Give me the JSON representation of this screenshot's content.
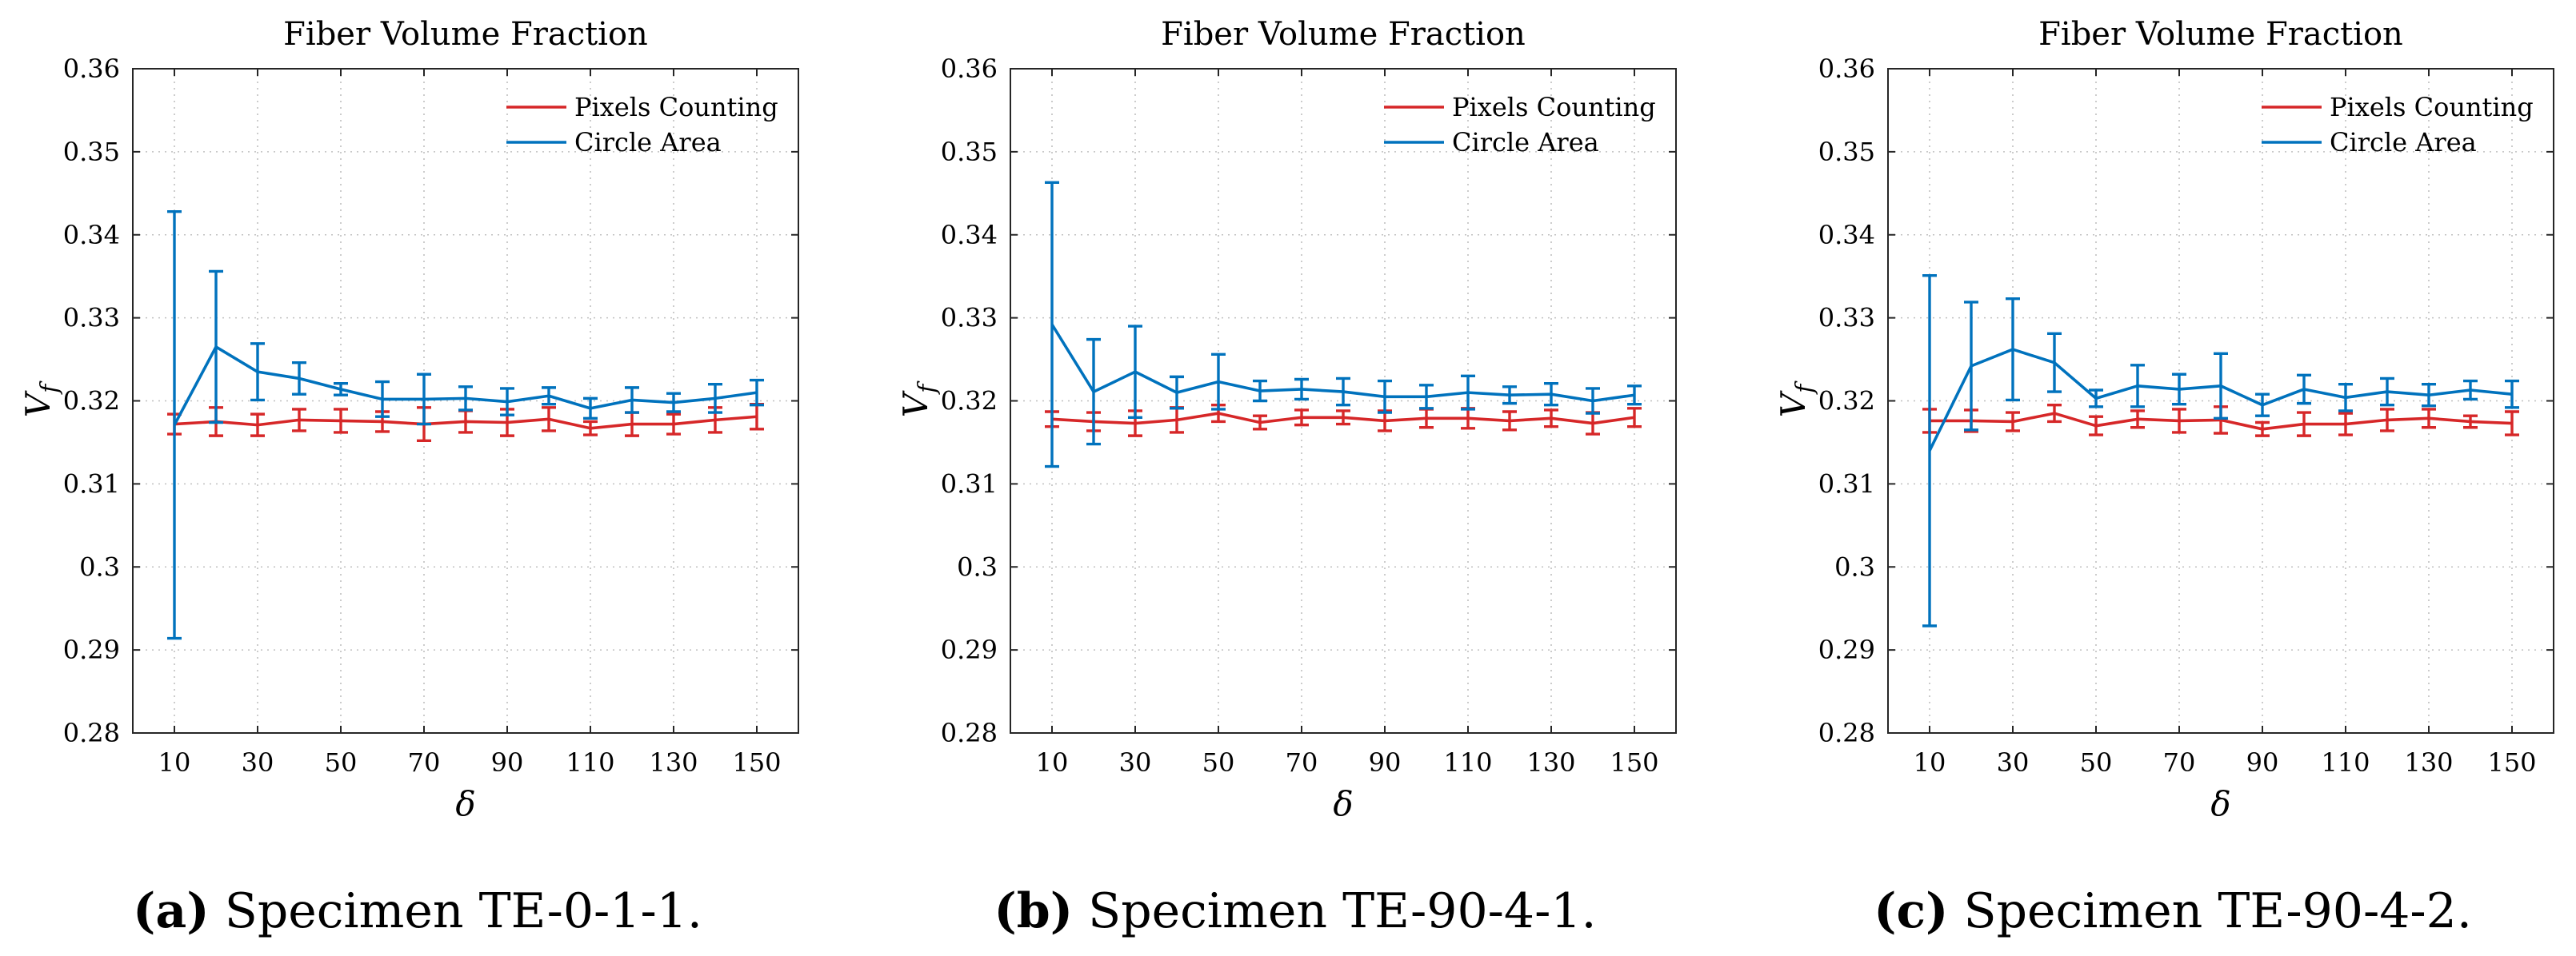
{
  "chart_data": [
    {
      "type": "line",
      "title": "Fiber Volume Fraction",
      "xlabel": "δ",
      "ylabel": "V",
      "ylabel_subscript": "f",
      "xlim": [
        0,
        160
      ],
      "ylim": [
        0.28,
        0.36
      ],
      "xticks": [
        10,
        30,
        50,
        70,
        90,
        110,
        130,
        150
      ],
      "xtick_labels": [
        "10",
        "30",
        "50",
        "70",
        "90",
        "110",
        "130",
        "150"
      ],
      "yticks": [
        0.28,
        0.29,
        0.3,
        0.31,
        0.32,
        0.33,
        0.34,
        0.35,
        0.36
      ],
      "ytick_labels": [
        "0.28",
        "0.29",
        "0.3",
        "0.31",
        "0.32",
        "0.33",
        "0.34",
        "0.35",
        "0.36"
      ],
      "grid": true,
      "legend_position": "top-right",
      "x": [
        10,
        20,
        30,
        40,
        50,
        60,
        70,
        80,
        90,
        100,
        110,
        120,
        130,
        140,
        150
      ],
      "series": [
        {
          "name": "Pixels Counting",
          "color": "#d62728",
          "values": [
            0.3172,
            0.3175,
            0.3171,
            0.3177,
            0.3176,
            0.3175,
            0.3172,
            0.3175,
            0.3174,
            0.3178,
            0.3167,
            0.3172,
            0.3172,
            0.3177,
            0.3181
          ],
          "errors": [
            0.0012,
            0.0017,
            0.0013,
            0.0013,
            0.0014,
            0.0012,
            0.002,
            0.0013,
            0.0016,
            0.0014,
            0.0008,
            0.0014,
            0.0012,
            0.0015,
            0.0015
          ]
        },
        {
          "name": "Circle Area",
          "color": "#0072bd",
          "values": [
            0.3171,
            0.3265,
            0.3235,
            0.3227,
            0.3214,
            0.3202,
            0.3202,
            0.3203,
            0.3199,
            0.3206,
            0.3191,
            0.3201,
            0.3198,
            0.3203,
            0.321
          ],
          "errors": [
            0.0257,
            0.0091,
            0.0034,
            0.0019,
            0.0007,
            0.0021,
            0.003,
            0.0014,
            0.0016,
            0.001,
            0.0012,
            0.0015,
            0.0011,
            0.0017,
            0.0015
          ]
        }
      ]
    },
    {
      "type": "line",
      "title": "Fiber Volume Fraction",
      "xlabel": "δ",
      "ylabel": "V",
      "ylabel_subscript": "f",
      "xlim": [
        0,
        160
      ],
      "ylim": [
        0.28,
        0.36
      ],
      "xticks": [
        10,
        30,
        50,
        70,
        90,
        110,
        130,
        150
      ],
      "xtick_labels": [
        "10",
        "30",
        "50",
        "70",
        "90",
        "110",
        "130",
        "150"
      ],
      "yticks": [
        0.28,
        0.29,
        0.3,
        0.31,
        0.32,
        0.33,
        0.34,
        0.35,
        0.36
      ],
      "ytick_labels": [
        "0.28",
        "0.29",
        "0.3",
        "0.31",
        "0.32",
        "0.33",
        "0.34",
        "0.35",
        "0.36"
      ],
      "grid": true,
      "legend_position": "top-right",
      "x": [
        10,
        20,
        30,
        40,
        50,
        60,
        70,
        80,
        90,
        100,
        110,
        120,
        130,
        140,
        150
      ],
      "series": [
        {
          "name": "Pixels Counting",
          "color": "#d62728",
          "values": [
            0.3178,
            0.3175,
            0.3173,
            0.3177,
            0.3185,
            0.3174,
            0.318,
            0.318,
            0.3176,
            0.3179,
            0.3179,
            0.3176,
            0.3179,
            0.3173,
            0.318
          ],
          "errors": [
            0.0009,
            0.0011,
            0.0015,
            0.0015,
            0.001,
            0.0008,
            0.0009,
            0.0008,
            0.0012,
            0.0011,
            0.0012,
            0.0011,
            0.001,
            0.0013,
            0.0011
          ]
        },
        {
          "name": "Circle Area",
          "color": "#0072bd",
          "values": [
            0.3292,
            0.3211,
            0.3235,
            0.321,
            0.3223,
            0.3212,
            0.3214,
            0.3211,
            0.3205,
            0.3205,
            0.321,
            0.3207,
            0.3208,
            0.32,
            0.3207
          ],
          "errors": [
            0.0171,
            0.0063,
            0.0055,
            0.0019,
            0.0033,
            0.0012,
            0.0012,
            0.0016,
            0.0019,
            0.0014,
            0.002,
            0.001,
            0.0013,
            0.0015,
            0.0011
          ]
        }
      ]
    },
    {
      "type": "line",
      "title": "Fiber Volume Fraction",
      "xlabel": "δ",
      "ylabel": "V",
      "ylabel_subscript": "f",
      "xlim": [
        0,
        160
      ],
      "ylim": [
        0.28,
        0.36
      ],
      "xticks": [
        10,
        30,
        50,
        70,
        90,
        110,
        130,
        150
      ],
      "xtick_labels": [
        "10",
        "30",
        "50",
        "70",
        "90",
        "110",
        "130",
        "150"
      ],
      "yticks": [
        0.28,
        0.29,
        0.3,
        0.31,
        0.32,
        0.33,
        0.34,
        0.35,
        0.36
      ],
      "ytick_labels": [
        "0.28",
        "0.29",
        "0.3",
        "0.31",
        "0.32",
        "0.33",
        "0.34",
        "0.35",
        "0.36"
      ],
      "grid": true,
      "legend_position": "top-right",
      "x": [
        10,
        20,
        30,
        40,
        50,
        60,
        70,
        80,
        90,
        100,
        110,
        120,
        130,
        140,
        150
      ],
      "series": [
        {
          "name": "Pixels Counting",
          "color": "#d62728",
          "values": [
            0.3176,
            0.3176,
            0.3175,
            0.3185,
            0.317,
            0.3178,
            0.3176,
            0.3177,
            0.3166,
            0.3172,
            0.3172,
            0.3177,
            0.3179,
            0.3175,
            0.3173
          ],
          "errors": [
            0.0014,
            0.0013,
            0.0011,
            0.001,
            0.0011,
            0.001,
            0.0014,
            0.0016,
            0.0008,
            0.0014,
            0.0013,
            0.0013,
            0.0011,
            0.0007,
            0.0014
          ]
        },
        {
          "name": "Circle Area",
          "color": "#0072bd",
          "values": [
            0.314,
            0.3242,
            0.3262,
            0.3246,
            0.3203,
            0.3218,
            0.3214,
            0.3218,
            0.3195,
            0.3214,
            0.3204,
            0.3211,
            0.3207,
            0.3213,
            0.3208
          ],
          "errors": [
            0.0211,
            0.0077,
            0.0061,
            0.0035,
            0.001,
            0.0025,
            0.0018,
            0.0039,
            0.0013,
            0.0017,
            0.0016,
            0.0016,
            0.0013,
            0.0011,
            0.0016
          ]
        }
      ]
    }
  ],
  "captions": [
    {
      "letter": "(a)",
      "text": " Specimen TE-0-1-1."
    },
    {
      "letter": "(b)",
      "text": " Specimen TE-90-4-1."
    },
    {
      "letter": "(c)",
      "text": " Specimen TE-90-4-2."
    }
  ]
}
